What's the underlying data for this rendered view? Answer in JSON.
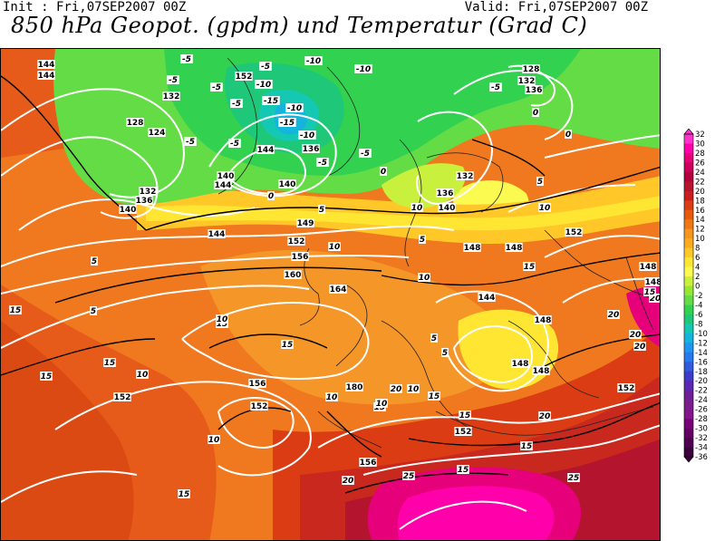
{
  "header": {
    "init": "Init : Fri,07SEP2007 00Z",
    "valid": "Valid: Fri,07SEP2007 00Z",
    "title": "850 hPa Geopot. (gpdm) und Temperatur (Grad C)"
  },
  "legend": {
    "levels": [
      "32",
      "30",
      "28",
      "26",
      "24",
      "22",
      "20",
      "18",
      "16",
      "14",
      "12",
      "10",
      "8",
      "6",
      "4",
      "2",
      "0",
      "-2",
      "-4",
      "-6",
      "-8",
      "-10",
      "-12",
      "-14",
      "-16",
      "-18",
      "-20",
      "-22",
      "-24",
      "-26",
      "-28",
      "-30",
      "-32",
      "-34",
      "-36"
    ],
    "colors": [
      "#ff33cc",
      "#ff00aa",
      "#e6007a",
      "#cc005a",
      "#b4003c",
      "#b4142d",
      "#c81e1e",
      "#dc3c14",
      "#e65a0a",
      "#f07814",
      "#f5961e",
      "#faaa1e",
      "#ffc828",
      "#ffe632",
      "#fafa50",
      "#c8f03c",
      "#96e632",
      "#64dc46",
      "#32d250",
      "#1ec878",
      "#14c8b4",
      "#14b4dc",
      "#1e96f0",
      "#2878f0",
      "#325adc",
      "#3c3cc8",
      "#5a28b4",
      "#6e1e96",
      "#7a1e8c",
      "#84148c",
      "#780078",
      "#640064",
      "#500050",
      "#3c003c"
    ]
  },
  "geopot_labels": [
    "144",
    "144",
    "132",
    "128",
    "124",
    "132",
    "136",
    "140",
    "144",
    "152",
    "140",
    "144",
    "140",
    "136",
    "128",
    "132",
    "136",
    "132",
    "136",
    "140",
    "144",
    "148",
    "148",
    "148",
    "152",
    "149",
    "152",
    "156",
    "160",
    "164",
    "144",
    "148",
    "148",
    "156",
    "152",
    "152",
    "180",
    "152",
    "156",
    "148",
    "148",
    "152"
  ],
  "temp_labels": [
    "-5",
    "-5",
    "-5",
    "-5",
    "-10",
    "-10",
    "-10",
    "-15",
    "-15",
    "-10",
    "-5",
    "-10",
    "-5",
    "-5",
    "0",
    "-5",
    "0",
    "-5",
    "-5",
    "0",
    "0",
    "5",
    "5",
    "5",
    "10",
    "10",
    "10",
    "15",
    "10",
    "5",
    "5",
    "5",
    "5",
    "15",
    "15",
    "15",
    "15",
    "15",
    "15",
    "10",
    "10",
    "10",
    "20",
    "15",
    "10",
    "10",
    "15",
    "15",
    "20",
    "20",
    "20",
    "20",
    "20",
    "20",
    "25",
    "25",
    "15",
    "15",
    "15",
    "10"
  ]
}
